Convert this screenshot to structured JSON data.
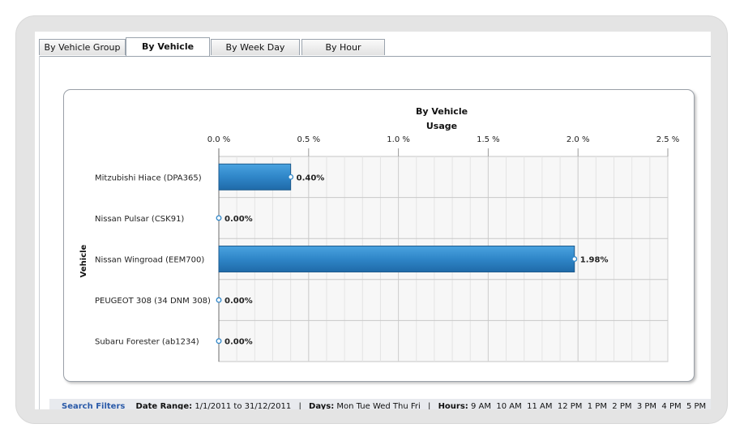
{
  "tabs": [
    {
      "label": "By Vehicle Group",
      "active": false
    },
    {
      "label": "By Vehicle",
      "active": true
    },
    {
      "label": "By Week Day",
      "active": false
    },
    {
      "label": "By Hour",
      "active": false
    }
  ],
  "chart_data": {
    "type": "bar",
    "orientation": "horizontal",
    "title": "By Vehicle",
    "subtitle": "Usage",
    "ylabel": "Vehicle",
    "xlabel": "",
    "categories": [
      "Mitzubishi Hiace  (DPA365)",
      "Nissan Pulsar  (CSK91)",
      "Nissan Wingroad  (EEM700)",
      "PEUGEOT 308  (34 DNM 308)",
      "Subaru Forester  (ab1234)"
    ],
    "values": [
      0.4,
      0.0,
      1.98,
      0.0,
      0.0
    ],
    "data_labels": [
      "0.40%",
      "0.00%",
      "1.98%",
      "0.00%",
      "0.00%"
    ],
    "xlim": [
      0,
      2.5
    ],
    "xticks": [
      0.0,
      0.5,
      1.0,
      1.5,
      2.0,
      2.5
    ],
    "xtick_labels": [
      "0.0 %",
      "0.5 %",
      "1.0 %",
      "1.5 %",
      "2.0 %",
      "2.5 %"
    ],
    "axis_position": "top",
    "grid": true,
    "bar_color": "#2f86c8"
  },
  "filters": {
    "title": "Search Filters",
    "date_range_label": "Date Range:",
    "date_range_value": "1/1/2011 to 31/12/2011",
    "days_label": "Days:",
    "days_value": "Mon Tue Wed Thu Fri",
    "hours_label": "Hours:",
    "hours_value": "9 AM  10 AM  11 AM  12 PM  1 PM  2 PM  3 PM  4 PM  5 PM",
    "separator": "|"
  }
}
